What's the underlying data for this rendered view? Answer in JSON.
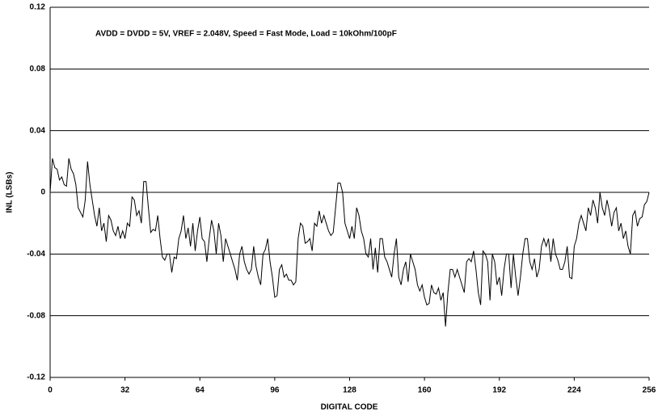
{
  "chart_data": {
    "type": "line",
    "annotation": "AVDD = DVDD = 5V, VREF = 2.048V, Speed = Fast Mode, Load = 10kOhm/100pF",
    "xlabel": "DIGITAL CODE",
    "ylabel": "INL (LSBs)",
    "xlim": [
      0,
      256
    ],
    "xticks": [
      0,
      32,
      64,
      96,
      128,
      160,
      192,
      224,
      256
    ],
    "ylim": [
      -0.12,
      0.12
    ],
    "yticks": [
      0.12,
      0.08,
      0.04,
      0,
      -0.04,
      -0.08,
      -0.12
    ],
    "grid": true,
    "color": "#000000",
    "x": [
      0,
      1,
      2,
      3,
      4,
      5,
      6,
      7,
      8,
      9,
      10,
      11,
      12,
      13,
      14,
      15,
      16,
      17,
      18,
      19,
      20,
      21,
      22,
      23,
      24,
      25,
      26,
      27,
      28,
      29,
      30,
      31,
      32,
      33,
      34,
      35,
      36,
      37,
      38,
      39,
      40,
      41,
      42,
      43,
      44,
      45,
      46,
      47,
      48,
      49,
      50,
      51,
      52,
      53,
      54,
      55,
      56,
      57,
      58,
      59,
      60,
      61,
      62,
      63,
      64,
      65,
      66,
      67,
      68,
      69,
      70,
      71,
      72,
      73,
      74,
      75,
      76,
      77,
      78,
      79,
      80,
      81,
      82,
      83,
      84,
      85,
      86,
      87,
      88,
      89,
      90,
      91,
      92,
      93,
      94,
      95,
      96,
      97,
      98,
      99,
      100,
      101,
      102,
      103,
      104,
      105,
      106,
      107,
      108,
      109,
      110,
      111,
      112,
      113,
      114,
      115,
      116,
      117,
      118,
      119,
      120,
      121,
      122,
      123,
      124,
      125,
      126,
      127,
      128,
      129,
      130,
      131,
      132,
      133,
      134,
      135,
      136,
      137,
      138,
      139,
      140,
      141,
      142,
      143,
      144,
      145,
      146,
      147,
      148,
      149,
      150,
      151,
      152,
      153,
      154,
      155,
      156,
      157,
      158,
      159,
      160,
      161,
      162,
      163,
      164,
      165,
      166,
      167,
      168,
      169,
      170,
      171,
      172,
      173,
      174,
      175,
      176,
      177,
      178,
      179,
      180,
      181,
      182,
      183,
      184,
      185,
      186,
      187,
      188,
      189,
      190,
      191,
      192,
      193,
      194,
      195,
      196,
      197,
      198,
      199,
      200,
      201,
      202,
      203,
      204,
      205,
      206,
      207,
      208,
      209,
      210,
      211,
      212,
      213,
      214,
      215,
      216,
      217,
      218,
      219,
      220,
      221,
      222,
      223,
      224,
      225,
      226,
      227,
      228,
      229,
      230,
      231,
      232,
      233,
      234,
      235,
      236,
      237,
      238,
      239,
      240,
      241,
      242,
      243,
      244,
      245,
      246,
      247,
      248,
      249,
      250,
      251,
      252,
      253,
      254,
      255,
      256
    ],
    "values": [
      0.0,
      0.022,
      0.016,
      0.015,
      0.008,
      0.01,
      0.005,
      0.004,
      0.022,
      0.015,
      0.012,
      0.005,
      -0.01,
      -0.013,
      -0.016,
      -0.005,
      0.02,
      0.005,
      -0.005,
      -0.015,
      -0.022,
      -0.01,
      -0.025,
      -0.02,
      -0.032,
      -0.015,
      -0.018,
      -0.025,
      -0.028,
      -0.022,
      -0.03,
      -0.025,
      -0.03,
      -0.02,
      -0.022,
      -0.003,
      -0.005,
      -0.015,
      -0.012,
      -0.02,
      0.007,
      0.007,
      -0.01,
      -0.026,
      -0.024,
      -0.025,
      -0.015,
      -0.03,
      -0.042,
      -0.044,
      -0.04,
      -0.04,
      -0.052,
      -0.042,
      -0.043,
      -0.03,
      -0.025,
      -0.015,
      -0.03,
      -0.023,
      -0.035,
      -0.02,
      -0.038,
      -0.025,
      -0.016,
      -0.03,
      -0.032,
      -0.045,
      -0.03,
      -0.018,
      -0.025,
      -0.04,
      -0.02,
      -0.028,
      -0.045,
      -0.03,
      -0.035,
      -0.04,
      -0.045,
      -0.05,
      -0.057,
      -0.04,
      -0.035,
      -0.045,
      -0.05,
      -0.053,
      -0.05,
      -0.035,
      -0.048,
      -0.055,
      -0.06,
      -0.04,
      -0.037,
      -0.03,
      -0.045,
      -0.055,
      -0.068,
      -0.067,
      -0.05,
      -0.047,
      -0.055,
      -0.053,
      -0.057,
      -0.057,
      -0.06,
      -0.058,
      -0.03,
      -0.02,
      -0.022,
      -0.033,
      -0.032,
      -0.03,
      -0.038,
      -0.02,
      -0.022,
      -0.012,
      -0.02,
      -0.015,
      -0.02,
      -0.025,
      -0.028,
      -0.026,
      -0.01,
      0.006,
      0.006,
      0.0,
      -0.02,
      -0.025,
      -0.03,
      -0.022,
      -0.03,
      -0.01,
      -0.015,
      -0.025,
      -0.03,
      -0.04,
      -0.042,
      -0.03,
      -0.05,
      -0.036,
      -0.052,
      -0.03,
      -0.03,
      -0.042,
      -0.045,
      -0.05,
      -0.055,
      -0.04,
      -0.03,
      -0.055,
      -0.06,
      -0.05,
      -0.045,
      -0.058,
      -0.04,
      -0.045,
      -0.05,
      -0.06,
      -0.064,
      -0.06,
      -0.068,
      -0.073,
      -0.072,
      -0.06,
      -0.065,
      -0.066,
      -0.062,
      -0.07,
      -0.065,
      -0.087,
      -0.065,
      -0.05,
      -0.05,
      -0.055,
      -0.05,
      -0.055,
      -0.06,
      -0.065,
      -0.045,
      -0.043,
      -0.045,
      -0.038,
      -0.05,
      -0.065,
      -0.073,
      -0.038,
      -0.04,
      -0.045,
      -0.07,
      -0.04,
      -0.045,
      -0.06,
      -0.055,
      -0.067,
      -0.05,
      -0.04,
      -0.04,
      -0.062,
      -0.04,
      -0.055,
      -0.067,
      -0.055,
      -0.04,
      -0.03,
      -0.03,
      -0.045,
      -0.05,
      -0.043,
      -0.055,
      -0.05,
      -0.035,
      -0.03,
      -0.035,
      -0.03,
      -0.045,
      -0.03,
      -0.04,
      -0.044,
      -0.05,
      -0.05,
      -0.045,
      -0.035,
      -0.055,
      -0.056,
      -0.035,
      -0.03,
      -0.02,
      -0.015,
      -0.02,
      -0.025,
      -0.01,
      -0.015,
      -0.005,
      -0.01,
      -0.02,
      0.0,
      -0.01,
      -0.015,
      -0.005,
      -0.012,
      -0.022,
      -0.013,
      -0.01,
      -0.025,
      -0.02,
      -0.03,
      -0.025,
      -0.035,
      -0.04,
      -0.015,
      -0.012,
      -0.022,
      -0.017,
      -0.016,
      -0.008,
      -0.006,
      0.0
    ]
  }
}
